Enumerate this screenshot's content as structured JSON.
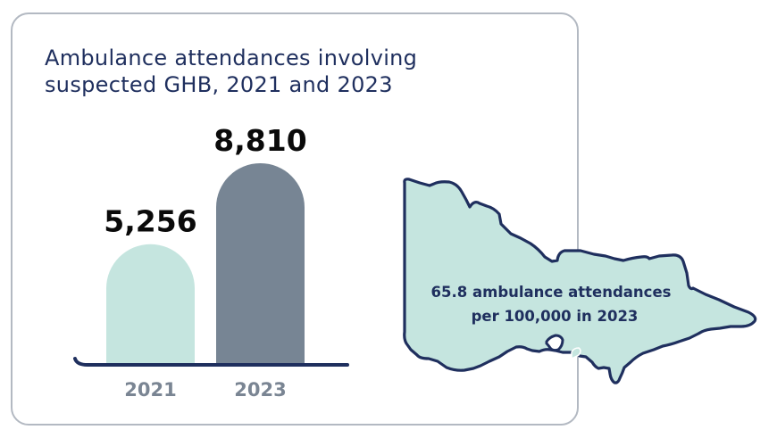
{
  "title": {
    "line1": "Ambulance attendances involving",
    "line2": "suspected GHB, 2021 and 2023"
  },
  "colors": {
    "title": "#1f2f5e",
    "bar_2021": "#c5e5df",
    "bar_2023": "#778594",
    "axis": "#1f2f5e",
    "tick": "#7a8593",
    "map_fill": "#c5e5df",
    "map_outline": "#1f2f5e",
    "card_border": "#b3b9c2"
  },
  "chart_data": {
    "type": "bar",
    "title": "Ambulance attendances involving suspected GHB, 2021 and 2023",
    "categories": [
      "2021",
      "2023"
    ],
    "values": [
      5256,
      8810
    ],
    "value_labels": [
      "5,256",
      "8,810"
    ],
    "xlabel": "",
    "ylabel": "",
    "ylim": [
      0,
      9200
    ],
    "grid": false
  },
  "map": {
    "region_icon": "victoria-map-icon",
    "label_line1": "65.8 ambulance attendances",
    "label_line2": "per 100,000 in 2023"
  }
}
